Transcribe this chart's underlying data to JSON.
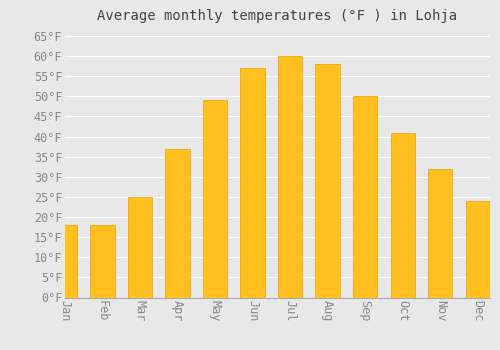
{
  "title": "Average monthly temperatures (°F ) in Lohja",
  "months": [
    "Jan",
    "Feb",
    "Mar",
    "Apr",
    "May",
    "Jun",
    "Jul",
    "Aug",
    "Sep",
    "Oct",
    "Nov",
    "Dec"
  ],
  "values": [
    18,
    18,
    25,
    37,
    49,
    57,
    60,
    58,
    50,
    41,
    32,
    24
  ],
  "bar_color_top": "#FFC020",
  "bar_color_bottom": "#F5A800",
  "bar_edge_color": "#E8A000",
  "background_color": "#E8E8E8",
  "grid_color": "#FFFFFF",
  "text_color": "#888888",
  "title_color": "#444444",
  "ylim": [
    0,
    67
  ],
  "yticks": [
    0,
    5,
    10,
    15,
    20,
    25,
    30,
    35,
    40,
    45,
    50,
    55,
    60,
    65
  ],
  "ylabel_suffix": "°F",
  "title_fontsize": 10,
  "tick_fontsize": 8.5,
  "font_family": "monospace"
}
